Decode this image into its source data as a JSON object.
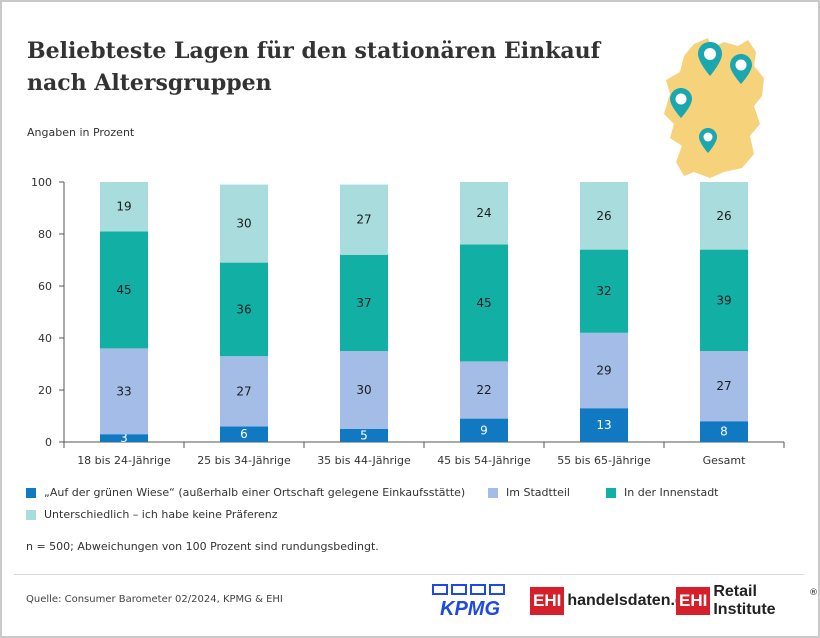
{
  "header": {
    "title": "Beliebteste Lagen für den stationären Einkauf nach Altersgruppen",
    "subtitle": "Angaben in Prozent"
  },
  "colors": {
    "gruene_wiese": "#1179c2",
    "stadtteil": "#a3bde6",
    "innenstadt": "#12afa4",
    "unterschiedlich": "#a9dcdc",
    "map_fill": "#f6d27a",
    "pin": "#1aa7b0"
  },
  "chart_data": {
    "type": "bar",
    "stacked": true,
    "categories": [
      "18 bis 24-Jährige",
      "25 bis 34-Jährige",
      "35 bis 44-Jährige",
      "45 bis 54-Jährige",
      "55 bis 65-Jährige",
      "Gesamt"
    ],
    "series": [
      {
        "name": "„Auf der grünen Wiese“ (außerhalb einer Ortschaft gelegene Einkaufsstätte)",
        "color": "#1179c2",
        "values": [
          3,
          6,
          5,
          9,
          13,
          8
        ]
      },
      {
        "name": "Im Stadtteil",
        "color": "#a3bde6",
        "values": [
          33,
          27,
          30,
          22,
          29,
          27
        ]
      },
      {
        "name": "In der Innenstadt",
        "color": "#12afa4",
        "values": [
          45,
          36,
          37,
          45,
          32,
          39
        ]
      },
      {
        "name": "Unterschiedlich – ich habe keine Präferenz",
        "color": "#a9dcdc",
        "values": [
          19,
          30,
          27,
          24,
          26,
          26
        ]
      }
    ],
    "yticks": [
      0,
      20,
      40,
      60,
      80,
      100
    ],
    "ylim": [
      0,
      100
    ],
    "grid": false,
    "legend_position": "bottom"
  },
  "legend": [
    {
      "label": "„Auf der grünen Wiese“ (außerhalb einer Ortschaft gelegene Einkaufsstätte)",
      "color": "#1179c2"
    },
    {
      "label": "Im Stadtteil",
      "color": "#a3bde6"
    },
    {
      "label": "In der Innenstadt",
      "color": "#12afa4"
    },
    {
      "label": "Unterschiedlich – ich habe keine Präferenz",
      "color": "#a9dcdc"
    }
  ],
  "note": "n = 500; Abweichungen von 100 Prozent sind rundungsbedingt.",
  "source": "Quelle: Consumer Barometer 02/2024, KPMG & EHI",
  "logos": {
    "kpmg": "KPMG",
    "ehi": "EHI",
    "handelsdaten": "handelsdaten.de",
    "retail": "Retail Institute",
    "registered": "®"
  }
}
